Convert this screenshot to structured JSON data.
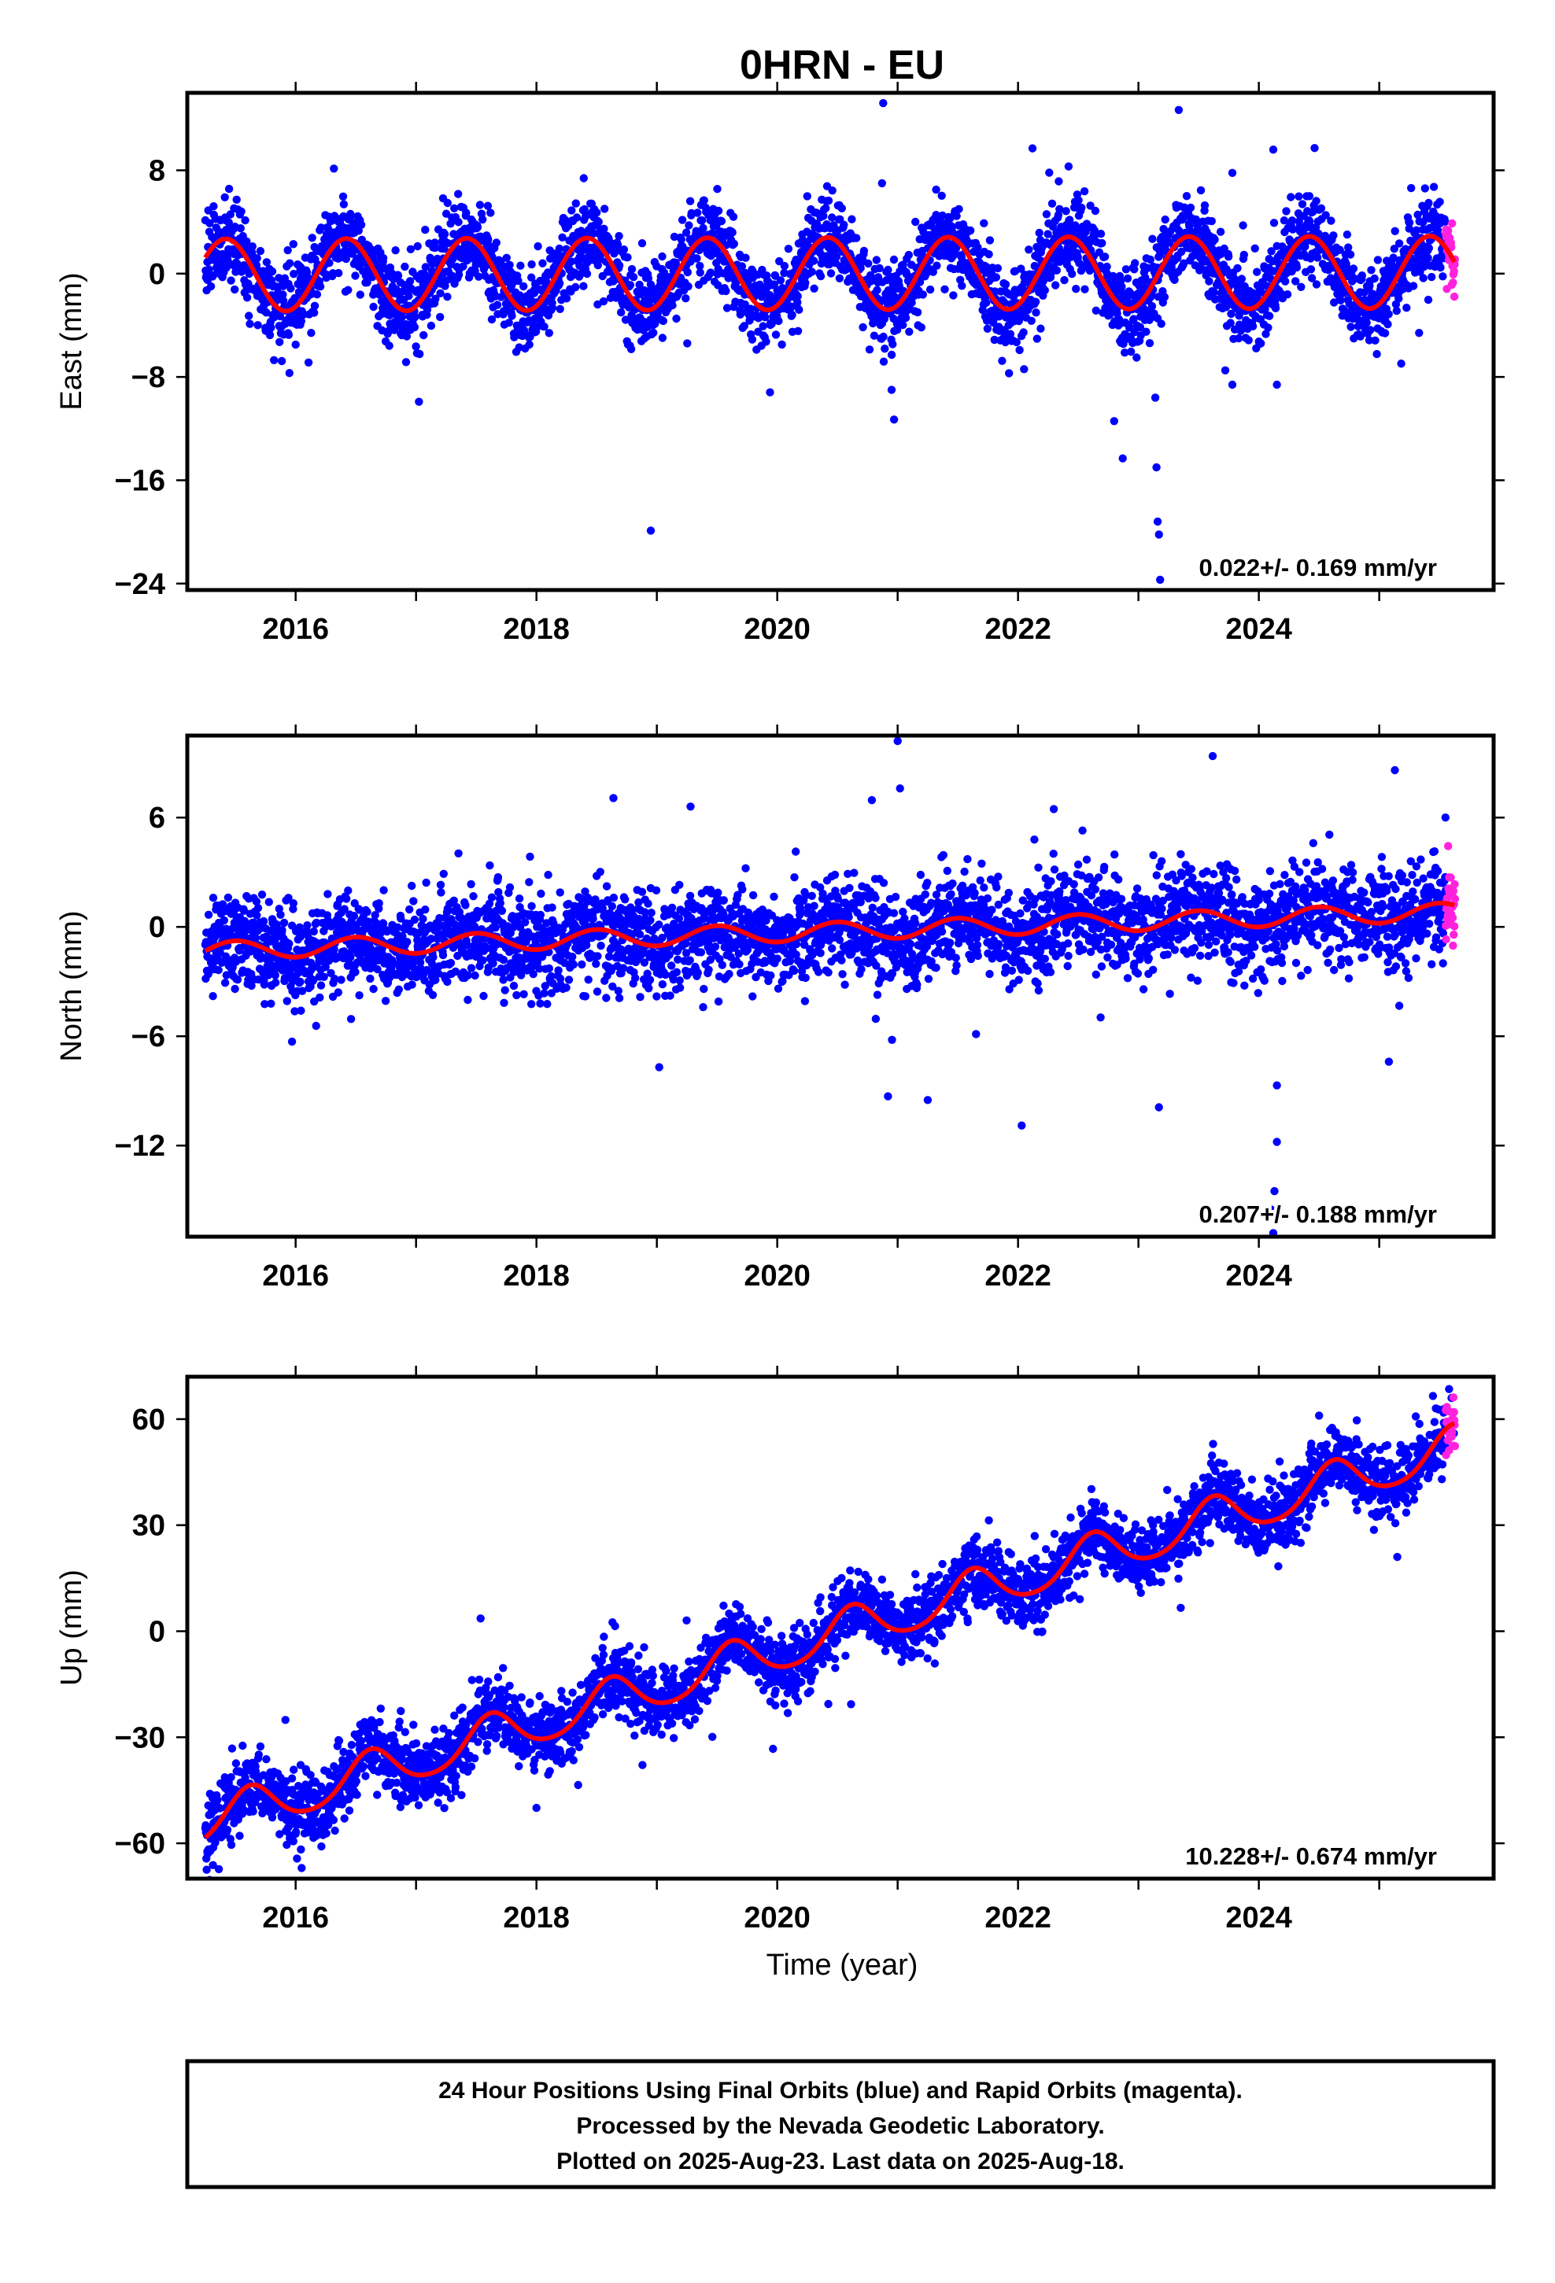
{
  "title": "0HRN - EU",
  "xlabel": "Time (year)",
  "colors": {
    "final": "#0000ff",
    "rapid": "#ff22dd",
    "model": "#ff0000"
  },
  "footer": {
    "line1": "24 Hour Positions Using Final Orbits (blue) and Rapid Orbits (magenta).",
    "line2": "Processed by the Nevada Geodetic Laboratory.",
    "line3": "Plotted on 2025-Aug-23. Last data on 2025-Aug-18."
  },
  "chart_data": [
    {
      "type": "scatter",
      "component": "east",
      "ylabel": "East (mm)",
      "xlim": [
        2015.1,
        2025.95
      ],
      "ylim": [
        -24.5,
        14
      ],
      "xticks": [
        2016,
        2018,
        2020,
        2022,
        2024
      ],
      "yticks": [
        8,
        0,
        -8,
        -16,
        -24
      ],
      "rate_label": "0.022+/- 0.169 mm/yr",
      "data_start": 2015.25,
      "final_end": 2025.55,
      "rapid_end": 2025.63,
      "model": {
        "offset": 0.0,
        "trend": 0.022,
        "annual_amp": 2.8,
        "annual_phase_peak": 0.42,
        "semiannual_amp": 0.0
      },
      "scatter_sigma": 1.6,
      "outliers": [
        {
          "x": 2020.88,
          "y": 13.2
        },
        {
          "x": 2020.87,
          "y": 7.0
        },
        {
          "x": 2021.32,
          "y": 6.5
        },
        {
          "x": 2022.12,
          "y": 9.7
        },
        {
          "x": 2022.42,
          "y": 8.3
        },
        {
          "x": 2023.78,
          "y": 7.8
        },
        {
          "x": 2024.12,
          "y": 9.6
        },
        {
          "x": 2024.42,
          "y": 6.0
        },
        {
          "x": 2018.95,
          "y": -19.9
        },
        {
          "x": 2023.18,
          "y": -23.7
        },
        {
          "x": 2023.17,
          "y": -20.2
        },
        {
          "x": 2023.16,
          "y": -19.2
        },
        {
          "x": 2023.15,
          "y": -15.0
        },
        {
          "x": 2023.14,
          "y": -9.6
        },
        {
          "x": 2020.97,
          "y": -11.3
        },
        {
          "x": 2020.95,
          "y": -9.0
        },
        {
          "x": 2015.82,
          "y": -6.7
        },
        {
          "x": 2023.78,
          "y": -8.6
        },
        {
          "x": 2024.15,
          "y": -8.6
        },
        {
          "x": 2022.05,
          "y": -7.4
        }
      ]
    },
    {
      "type": "scatter",
      "component": "north",
      "ylabel": "North (mm)",
      "xlim": [
        2015.1,
        2025.95
      ],
      "ylim": [
        -17,
        10.5
      ],
      "xticks": [
        2016,
        2018,
        2020,
        2022,
        2024
      ],
      "yticks": [
        6,
        0,
        -6,
        -12
      ],
      "rate_label": "0.207+/- 0.188 mm/yr",
      "data_start": 2015.25,
      "final_end": 2025.55,
      "rapid_end": 2025.63,
      "model": {
        "offset": -0.25,
        "trend": 0.207,
        "annual_amp": 0.5,
        "annual_phase_peak": 0.5,
        "semiannual_amp": 0.0
      },
      "scatter_sigma": 1.3,
      "outliers": [
        {
          "x": 2021.0,
          "y": 10.2
        },
        {
          "x": 2021.02,
          "y": 7.6
        },
        {
          "x": 2019.28,
          "y": 6.6
        },
        {
          "x": 2025.13,
          "y": 8.6
        },
        {
          "x": 2025.55,
          "y": 6.0
        },
        {
          "x": 2024.12,
          "y": -16.8
        },
        {
          "x": 2024.1,
          "y": -15.5
        },
        {
          "x": 2024.13,
          "y": -14.5
        },
        {
          "x": 2024.15,
          "y": -11.8
        },
        {
          "x": 2022.03,
          "y": -10.9
        },
        {
          "x": 2023.17,
          "y": -9.9
        },
        {
          "x": 2020.92,
          "y": -9.3
        },
        {
          "x": 2021.25,
          "y": -9.5
        },
        {
          "x": 2019.02,
          "y": -7.7
        },
        {
          "x": 2024.15,
          "y": -8.7
        },
        {
          "x": 2025.08,
          "y": -7.4
        },
        {
          "x": 2015.97,
          "y": -6.3
        },
        {
          "x": 2025.53,
          "y": -2.0
        }
      ]
    },
    {
      "type": "scatter",
      "component": "up",
      "ylabel": "Up (mm)",
      "xlim": [
        2015.1,
        2025.95
      ],
      "ylim": [
        -70,
        72
      ],
      "xticks": [
        2016,
        2018,
        2020,
        2022,
        2024
      ],
      "yticks": [
        60,
        30,
        0,
        -30,
        -60
      ],
      "rate_label": "10.228+/- 0.674 mm/yr",
      "data_start": 2015.25,
      "final_end": 2025.55,
      "rapid_end": 2025.63,
      "model": {
        "offset": -1.5,
        "trend": 10.228,
        "annual_amp": 6.0,
        "annual_phase_peak": 0.62,
        "semiannual_amp": 0.8
      },
      "scatter_sigma": 4.8,
      "outliers": [
        {
          "x": 2016.05,
          "y": -67.0
        },
        {
          "x": 2018.0,
          "y": -50.0
        },
        {
          "x": 2025.15,
          "y": 21.0
        },
        {
          "x": 2023.62,
          "y": 53.0
        },
        {
          "x": 2024.5,
          "y": 61.0
        },
        {
          "x": 2025.58,
          "y": 68.5
        },
        {
          "x": 2025.6,
          "y": 66.0
        },
        {
          "x": 2025.62,
          "y": 56.0
        }
      ]
    }
  ]
}
